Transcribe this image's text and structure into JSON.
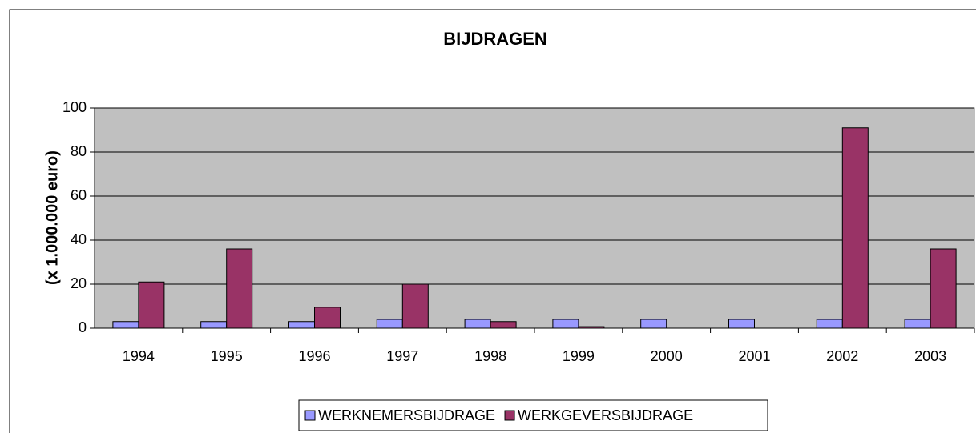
{
  "chart_data": {
    "type": "bar",
    "title": "BIJDRAGEN",
    "y_label": "(x 1.000.000 euro)",
    "categories": [
      "1994",
      "1995",
      "1996",
      "1997",
      "1998",
      "1999",
      "2000",
      "2001",
      "2002",
      "2003"
    ],
    "series": [
      {
        "name": "WERKNEMERSBIJDRAGE",
        "color": "#9999ff",
        "values": [
          3,
          3,
          3,
          4,
          4,
          4,
          4,
          4,
          4,
          4
        ]
      },
      {
        "name": "WERKGEVERSBIJDRAGE",
        "color": "#993366",
        "values": [
          21,
          36,
          9.5,
          20,
          3,
          0.7,
          0,
          0,
          91,
          36
        ]
      }
    ],
    "ylim": [
      0,
      100
    ],
    "yticks": [
      0,
      20,
      40,
      60,
      80,
      100
    ],
    "grid": true,
    "legend": "bottom"
  }
}
